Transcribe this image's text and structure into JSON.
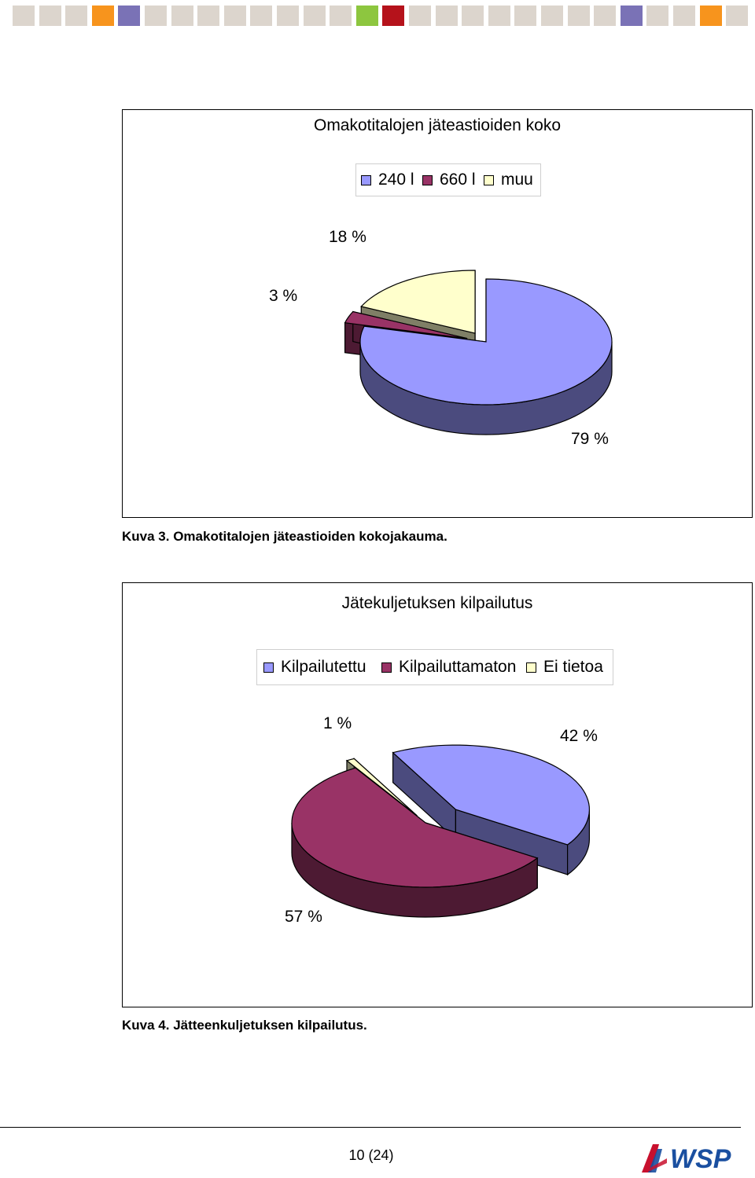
{
  "header": {
    "strip_colors": [
      "#dcd5cd",
      "#dcd5cd",
      "#dcd5cd",
      "#f7941d",
      "#7a72b6",
      "#dcd5cd",
      "#dcd5cd",
      "#dcd5cd",
      "#dcd5cd",
      "#dcd5cd",
      "#dcd5cd",
      "#dcd5cd",
      "#dcd5cd",
      "#8dc63f",
      "#b5121b",
      "#dcd5cd",
      "#dcd5cd",
      "#dcd5cd",
      "#dcd5cd",
      "#dcd5cd",
      "#dcd5cd",
      "#dcd5cd",
      "#dcd5cd",
      "#7a72b6",
      "#dcd5cd",
      "#dcd5cd",
      "#f7941d",
      "#dcd5cd"
    ]
  },
  "chart_data": [
    {
      "type": "pie",
      "style": "3d-exploded",
      "title": "Omakotitalojen jäteastioiden koko",
      "legend_position": "top",
      "categories": [
        "240 l",
        "660 l",
        "muu"
      ],
      "values": [
        79,
        3,
        18
      ],
      "labels": [
        "79 %",
        "3 %",
        "18 %"
      ],
      "colors": [
        "#9999ff",
        "#993366",
        "#ffffcc"
      ],
      "side_colors": [
        "#4b4b7e",
        "#4d1a33",
        "#7f7f66"
      ]
    },
    {
      "type": "pie",
      "style": "3d-exploded",
      "title": "Jätekuljetuksen kilpailutus",
      "legend_position": "top",
      "categories": [
        "Kilpailutettu",
        "Kilpailuttamaton",
        "Ei tietoa"
      ],
      "values": [
        42,
        57,
        1
      ],
      "labels": [
        "42 %",
        "57 %",
        "1 %"
      ],
      "colors": [
        "#9999ff",
        "#993366",
        "#ffffcc"
      ],
      "side_colors": [
        "#4b4b7e",
        "#4d1a33",
        "#7f7f66"
      ]
    }
  ],
  "captions": {
    "fig3": "Kuva 3. Omakotitalojen jäteastioiden kokojakauma.",
    "fig4": "Kuva 4. Jätteenkuljetuksen kilpailutus."
  },
  "footer": {
    "page_number": "10 (24)",
    "logo_text": "WSP",
    "logo_color": "#1a4fa0"
  }
}
